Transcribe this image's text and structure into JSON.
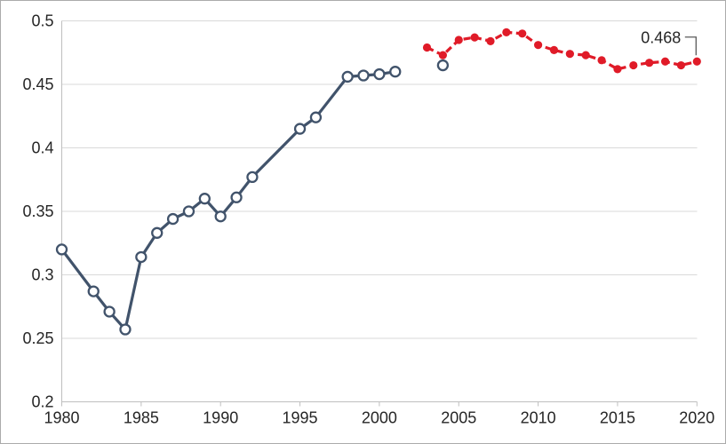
{
  "figure": {
    "background": "#ffffff",
    "border_color": "#ababab"
  },
  "colors": {
    "historical_line": "#41536b",
    "official_line": "#e01b28",
    "gridline": "#d9d9d9",
    "axis_line": "#bfbfbf",
    "tick_label": "#262626",
    "annotation_leader": "#595959",
    "marker_fill_open": "#ffffff"
  },
  "chart_data": {
    "type": "line",
    "title": "",
    "xlabel": "",
    "ylabel": "",
    "xlim": [
      1979.97,
      2020.35
    ],
    "ylim": [
      0.2,
      0.5
    ],
    "grid": "horizontal",
    "legend": "none",
    "x_ticks": [
      1980,
      1985,
      1990,
      1995,
      2000,
      2005,
      2010,
      2015,
      2020
    ],
    "x_tick_labels": [
      "1980",
      "1985",
      "1990",
      "1995",
      "2000",
      "2005",
      "2010",
      "2015",
      "2020"
    ],
    "y_ticks": [
      0.2,
      0.25,
      0.3,
      0.35,
      0.4,
      0.45,
      0.5
    ],
    "y_tick_labels": [
      "0.2",
      "0.25",
      "0.3",
      "0.35",
      "0.4",
      "0.45",
      "0.5"
    ],
    "series": [
      {
        "name": "historical-estimates-solid-navy-open-circles",
        "line_style": "solid",
        "color": "#41536b",
        "marker": "open-circle",
        "points": [
          [
            1980,
            0.32
          ],
          [
            1982,
            0.287
          ],
          [
            1983,
            0.271
          ],
          [
            1984,
            0.257
          ],
          [
            1985,
            0.314
          ],
          [
            1986,
            0.333
          ],
          [
            1987,
            0.344
          ],
          [
            1988,
            0.35
          ],
          [
            1989,
            0.36
          ],
          [
            1990,
            0.346
          ],
          [
            1991,
            0.361
          ],
          [
            1992,
            0.377
          ],
          [
            1995,
            0.415
          ],
          [
            1996,
            0.424
          ],
          [
            1998,
            0.456
          ],
          [
            1999,
            0.457
          ],
          [
            2000,
            0.458
          ],
          [
            2001,
            0.46
          ]
        ]
      },
      {
        "name": "isolated-estimate-open-circle",
        "line_style": "none",
        "color": "#41536b",
        "marker": "open-circle",
        "points": [
          [
            2004,
            0.465
          ]
        ]
      },
      {
        "name": "official-series-dashed-red-filled-circles",
        "line_style": "dashed",
        "color": "#e01b28",
        "marker": "filled-circle",
        "points": [
          [
            2003,
            0.479
          ],
          [
            2004,
            0.473
          ],
          [
            2005,
            0.485
          ],
          [
            2006,
            0.487
          ],
          [
            2007,
            0.484
          ],
          [
            2008,
            0.491
          ],
          [
            2009,
            0.49
          ],
          [
            2010,
            0.481
          ],
          [
            2011,
            0.477
          ],
          [
            2012,
            0.474
          ],
          [
            2013,
            0.473
          ],
          [
            2014,
            0.469
          ],
          [
            2015,
            0.462
          ],
          [
            2016,
            0.465
          ],
          [
            2017,
            0.467
          ],
          [
            2018,
            0.468
          ],
          [
            2019,
            0.465
          ],
          [
            2020,
            0.468
          ]
        ]
      }
    ],
    "annotation": {
      "text": "0.468",
      "year": 2020,
      "value": 0.468
    }
  }
}
